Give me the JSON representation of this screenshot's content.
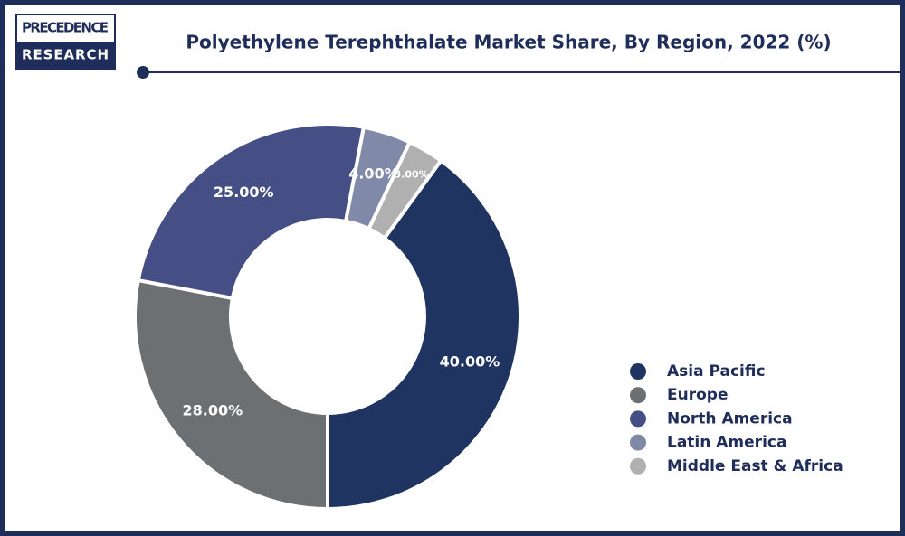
{
  "brand": [
    "PRECEDENCE",
    "RESEARCH"
  ],
  "chart_data": {
    "type": "donut",
    "title": "Polyethylene Terephthalate Market Share, By Region, 2022 (%)",
    "categories": [
      "Asia Pacific",
      "Europe",
      "North America",
      "Latin America",
      "Middle East & Africa"
    ],
    "values": [
      40,
      28,
      25,
      4,
      3
    ],
    "value_labels": [
      "40.00%",
      "28.00%",
      "25.00%",
      "4.00%",
      "3.00%"
    ],
    "colors": [
      "#1f3461",
      "#6d7073",
      "#454f85",
      "#8189a8",
      "#b0b0b0"
    ],
    "legend": "right"
  }
}
